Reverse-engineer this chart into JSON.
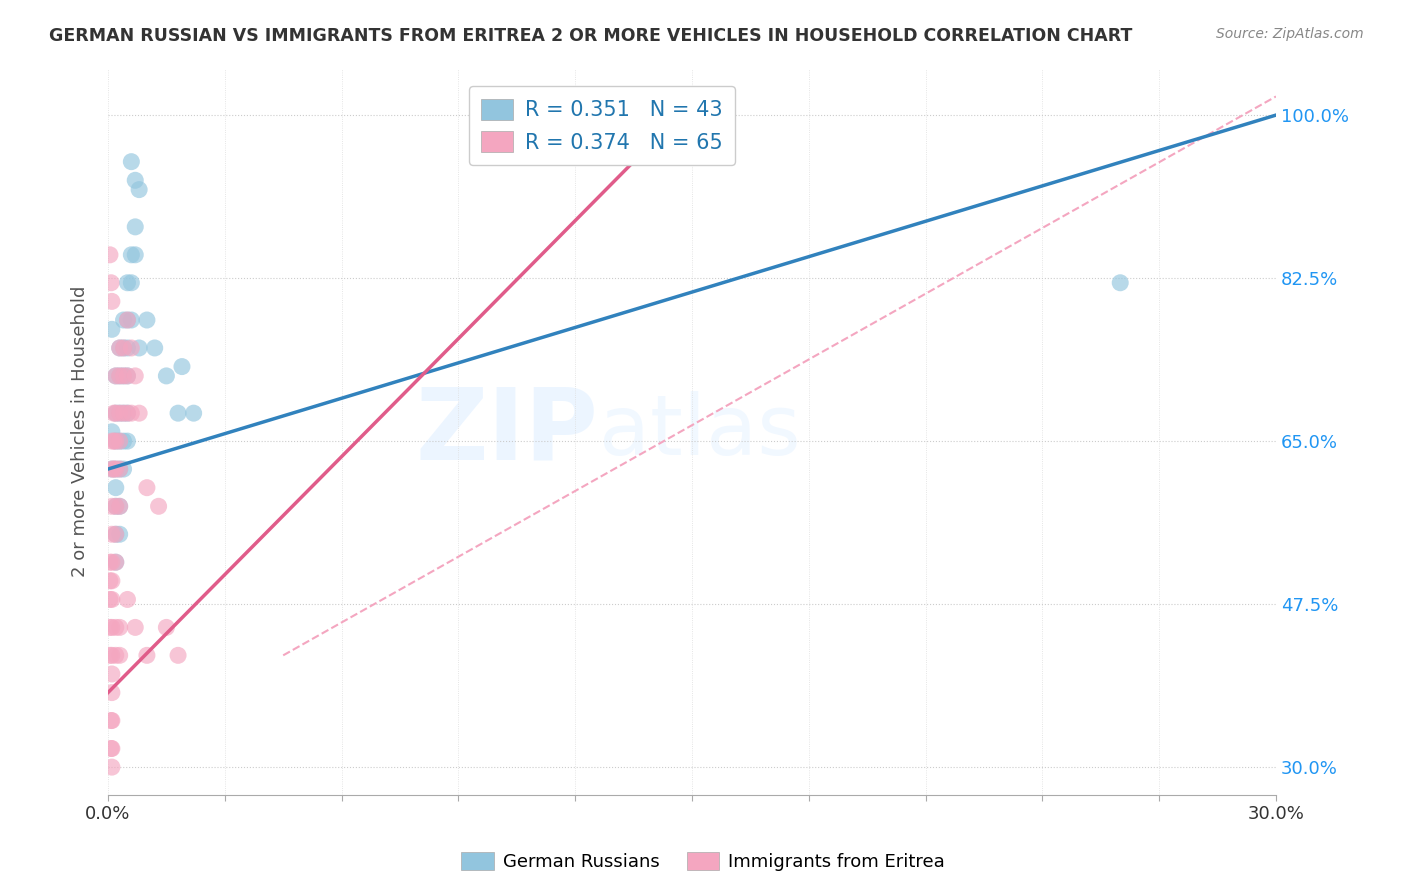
{
  "title": "GERMAN RUSSIAN VS IMMIGRANTS FROM ERITREA 2 OR MORE VEHICLES IN HOUSEHOLD CORRELATION CHART",
  "source": "Source: ZipAtlas.com",
  "ylabel": "2 or more Vehicles in Household",
  "yticks": [
    "100.0%",
    "82.5%",
    "65.0%",
    "47.5%",
    "30.0%"
  ],
  "ytick_vals": [
    1.0,
    0.825,
    0.65,
    0.475,
    0.3
  ],
  "xmin": 0.0,
  "xmax": 0.3,
  "ymin": 0.27,
  "ymax": 1.05,
  "blue_color": "#92c5de",
  "pink_color": "#f4a6c0",
  "blue_line_color": "#3182bd",
  "pink_line_color": "#e05c8a",
  "diag_line_color": "#f4a6c0",
  "watermark_zip": "ZIP",
  "watermark_atlas": "atlas",
  "blue_scatter": [
    [
      0.001,
      0.66
    ],
    [
      0.001,
      0.62
    ],
    [
      0.001,
      0.77
    ],
    [
      0.002,
      0.72
    ],
    [
      0.002,
      0.68
    ],
    [
      0.002,
      0.65
    ],
    [
      0.002,
      0.62
    ],
    [
      0.002,
      0.6
    ],
    [
      0.002,
      0.58
    ],
    [
      0.002,
      0.55
    ],
    [
      0.002,
      0.52
    ],
    [
      0.003,
      0.75
    ],
    [
      0.003,
      0.72
    ],
    [
      0.003,
      0.68
    ],
    [
      0.003,
      0.65
    ],
    [
      0.003,
      0.62
    ],
    [
      0.003,
      0.58
    ],
    [
      0.003,
      0.55
    ],
    [
      0.004,
      0.78
    ],
    [
      0.004,
      0.75
    ],
    [
      0.004,
      0.72
    ],
    [
      0.004,
      0.68
    ],
    [
      0.004,
      0.65
    ],
    [
      0.004,
      0.62
    ],
    [
      0.005,
      0.82
    ],
    [
      0.005,
      0.78
    ],
    [
      0.005,
      0.75
    ],
    [
      0.005,
      0.72
    ],
    [
      0.005,
      0.68
    ],
    [
      0.005,
      0.65
    ],
    [
      0.006,
      0.85
    ],
    [
      0.006,
      0.82
    ],
    [
      0.006,
      0.78
    ],
    [
      0.007,
      0.88
    ],
    [
      0.007,
      0.85
    ],
    [
      0.008,
      0.75
    ],
    [
      0.01,
      0.78
    ],
    [
      0.012,
      0.75
    ],
    [
      0.015,
      0.72
    ],
    [
      0.018,
      0.68
    ],
    [
      0.022,
      0.68
    ],
    [
      0.26,
      0.82
    ],
    [
      0.006,
      0.95
    ],
    [
      0.007,
      0.93
    ],
    [
      0.008,
      0.92
    ],
    [
      0.019,
      0.73
    ]
  ],
  "pink_scatter": [
    [
      0.0005,
      0.52
    ],
    [
      0.0005,
      0.5
    ],
    [
      0.0005,
      0.48
    ],
    [
      0.001,
      0.65
    ],
    [
      0.001,
      0.62
    ],
    [
      0.001,
      0.58
    ],
    [
      0.001,
      0.55
    ],
    [
      0.001,
      0.52
    ],
    [
      0.001,
      0.5
    ],
    [
      0.001,
      0.48
    ],
    [
      0.001,
      0.45
    ],
    [
      0.001,
      0.42
    ],
    [
      0.001,
      0.4
    ],
    [
      0.001,
      0.38
    ],
    [
      0.0015,
      0.68
    ],
    [
      0.0015,
      0.65
    ],
    [
      0.0015,
      0.62
    ],
    [
      0.002,
      0.72
    ],
    [
      0.002,
      0.68
    ],
    [
      0.002,
      0.65
    ],
    [
      0.002,
      0.62
    ],
    [
      0.002,
      0.58
    ],
    [
      0.002,
      0.55
    ],
    [
      0.002,
      0.52
    ],
    [
      0.003,
      0.75
    ],
    [
      0.003,
      0.72
    ],
    [
      0.003,
      0.68
    ],
    [
      0.003,
      0.65
    ],
    [
      0.003,
      0.62
    ],
    [
      0.003,
      0.58
    ],
    [
      0.004,
      0.75
    ],
    [
      0.004,
      0.72
    ],
    [
      0.004,
      0.68
    ],
    [
      0.005,
      0.78
    ],
    [
      0.005,
      0.72
    ],
    [
      0.005,
      0.68
    ],
    [
      0.006,
      0.75
    ],
    [
      0.006,
      0.68
    ],
    [
      0.007,
      0.72
    ],
    [
      0.008,
      0.68
    ],
    [
      0.01,
      0.6
    ],
    [
      0.013,
      0.58
    ],
    [
      0.001,
      0.35
    ],
    [
      0.001,
      0.32
    ],
    [
      0.001,
      0.3
    ],
    [
      0.0008,
      0.35
    ],
    [
      0.0008,
      0.32
    ],
    [
      0.002,
      0.45
    ],
    [
      0.002,
      0.42
    ],
    [
      0.003,
      0.45
    ],
    [
      0.003,
      0.42
    ],
    [
      0.005,
      0.48
    ],
    [
      0.007,
      0.45
    ],
    [
      0.01,
      0.42
    ],
    [
      0.015,
      0.45
    ],
    [
      0.018,
      0.42
    ],
    [
      0.0005,
      0.85
    ],
    [
      0.0008,
      0.82
    ],
    [
      0.001,
      0.8
    ],
    [
      0.0005,
      0.45
    ],
    [
      0.0005,
      0.42
    ]
  ],
  "blue_line_x": [
    0.0,
    0.3
  ],
  "blue_line_y": [
    0.62,
    1.0
  ],
  "pink_line_x": [
    0.0,
    0.135
  ],
  "pink_line_y": [
    0.38,
    0.95
  ],
  "diag_line_x": [
    0.045,
    0.3
  ],
  "diag_line_y": [
    0.42,
    1.02
  ]
}
